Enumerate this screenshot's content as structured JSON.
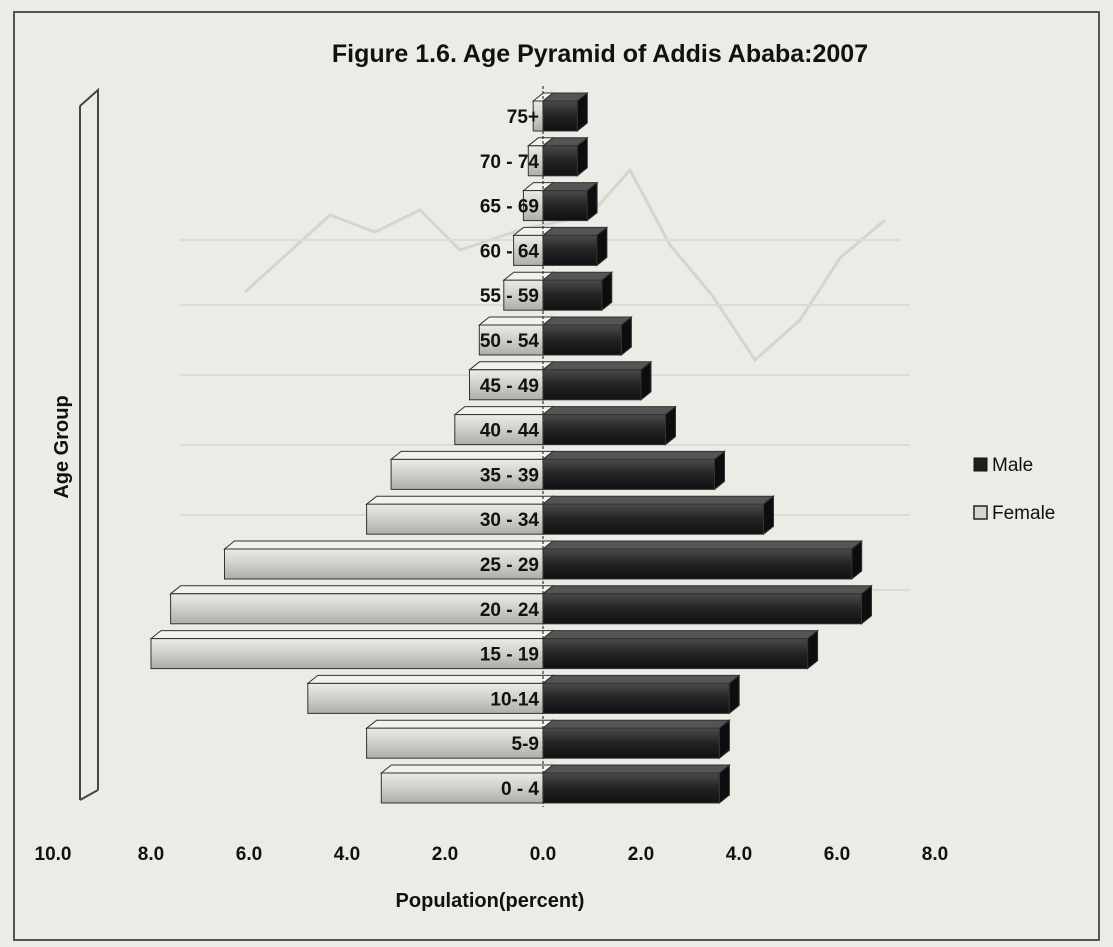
{
  "chart_data": {
    "type": "bar",
    "orientation": "horizontal",
    "style": "population-pyramid-3d",
    "title": "Figure 1.6. Age Pyramid of Addis Ababa:2007",
    "xlabel": "Population(percent)",
    "ylabel": "Age Group",
    "categories": [
      "0 - 4",
      "5-9",
      "10-14",
      "15 - 19",
      "20 - 24",
      "25 - 29",
      "30 - 34",
      "35 - 39",
      "40 - 44",
      "45 - 49",
      "50 - 54",
      "55 - 59",
      "60 - 64",
      "65 - 69",
      "70 - 74",
      "75+"
    ],
    "series": [
      {
        "name": "Male",
        "values": [
          3.6,
          3.6,
          3.8,
          5.4,
          6.5,
          6.3,
          4.5,
          3.5,
          2.5,
          2.0,
          1.6,
          1.2,
          1.1,
          0.9,
          0.7,
          0.7
        ],
        "color": "#2c2c2c"
      },
      {
        "name": "Female",
        "values": [
          3.3,
          3.6,
          4.8,
          8.0,
          7.6,
          6.5,
          3.6,
          3.1,
          1.8,
          1.5,
          1.3,
          0.8,
          0.6,
          0.4,
          0.3,
          0.2
        ],
        "color": "#d6d5d0"
      }
    ],
    "xticks": [
      "10.0",
      "8.0",
      "6.0",
      "4.0",
      "2.0",
      "0.0",
      "2.0",
      "4.0",
      "6.0",
      "8.0"
    ],
    "xlim": [
      -10,
      8
    ],
    "grid": false,
    "legend": "right"
  }
}
